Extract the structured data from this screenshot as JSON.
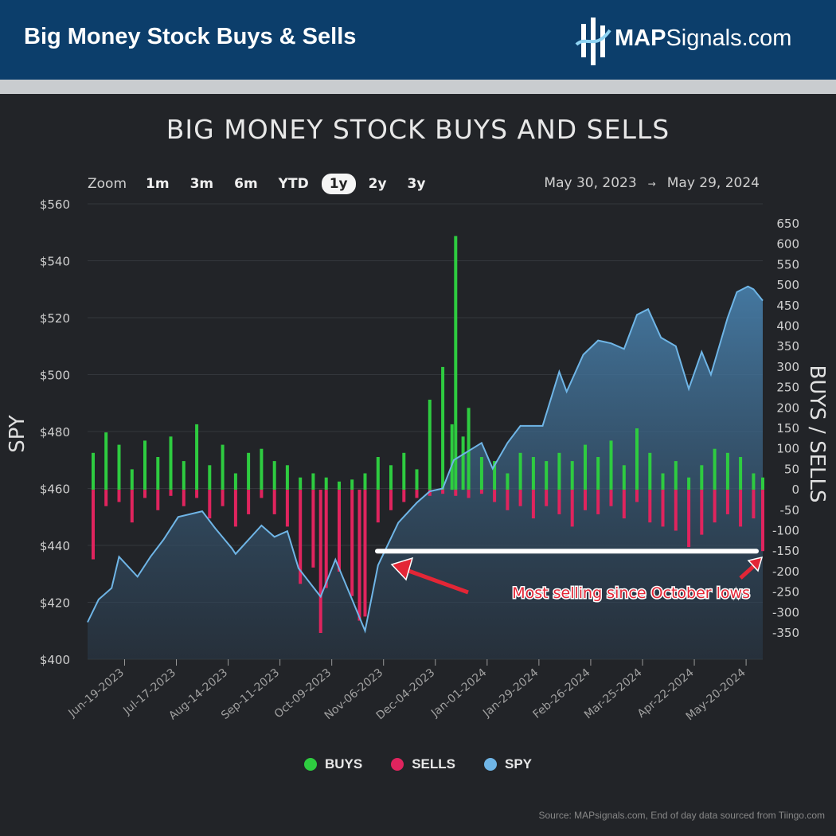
{
  "header": {
    "title": "Big Money Stock Buys & Sells",
    "logo_bold": "MAP",
    "logo_rest": "Signals.com"
  },
  "zoom": {
    "label": "Zoom",
    "options": [
      "1m",
      "3m",
      "6m",
      "YTD",
      "1y",
      "2y",
      "3y"
    ],
    "active": "1y"
  },
  "range": {
    "from": "May 30, 2023",
    "arrow": "→",
    "to": "May 29, 2024"
  },
  "legend": [
    {
      "label": "BUYS",
      "color": "#2ecc40"
    },
    {
      "label": "SELLS",
      "color": "#e0245e"
    },
    {
      "label": "SPY",
      "color": "#6fb5e6"
    }
  ],
  "source": "Source: MAPsignals.com, End of day data sourced from Tiingo.com",
  "annotation": {
    "text": "Most selling since October lows",
    "level": -150
  },
  "colors": {
    "buys": "#2ecc40",
    "sells": "#e0245e",
    "spy": "#6fb5e6",
    "annotation": "#e32636"
  },
  "chart_data": {
    "type": "bar",
    "title": "BIG MONEY STOCK BUYS AND SELLS",
    "ylabel_left": "SPY",
    "ylabel_right": "BUYS / SELLS",
    "left_axis": {
      "range": [
        400,
        560
      ],
      "ticks": [
        400,
        420,
        440,
        460,
        480,
        500,
        520,
        540,
        560
      ],
      "tick_labels": [
        "$400",
        "$420",
        "$440",
        "$460",
        "$480",
        "$500",
        "$520",
        "$540",
        "$560"
      ]
    },
    "right_axis": {
      "range": [
        -350,
        650
      ],
      "ticks": [
        -350,
        -300,
        -250,
        -200,
        -150,
        -100,
        -50,
        0,
        50,
        100,
        150,
        200,
        250,
        300,
        350,
        400,
        450,
        500,
        550,
        600,
        650
      ],
      "tick_labels": [
        "-350",
        "-300",
        "-250",
        "-200",
        "-150",
        "-100",
        "-50",
        "0",
        "50",
        "100",
        "150",
        "200",
        "250",
        "300",
        "350",
        "400",
        "450",
        "500",
        "550",
        "600",
        "650"
      ]
    },
    "x_ticks": [
      "Jun-19-2023",
      "Jul-17-2023",
      "Aug-14-2023",
      "Sep-11-2023",
      "Oct-09-2023",
      "Nov-06-2023",
      "Dec-04-2023",
      "Jan-01-2024",
      "Jan-29-2024",
      "Feb-26-2024",
      "Mar-25-2024",
      "Apr-22-2024",
      "May-20-2024"
    ],
    "x_range": [
      "2023-05-30",
      "2024-05-29"
    ],
    "series": [
      {
        "name": "BUYS",
        "type": "bar",
        "points": [
          {
            "x": "2023-06-02",
            "y": 90
          },
          {
            "x": "2023-06-09",
            "y": 140
          },
          {
            "x": "2023-06-16",
            "y": 110
          },
          {
            "x": "2023-06-23",
            "y": 50
          },
          {
            "x": "2023-06-30",
            "y": 120
          },
          {
            "x": "2023-07-07",
            "y": 80
          },
          {
            "x": "2023-07-14",
            "y": 130
          },
          {
            "x": "2023-07-21",
            "y": 70
          },
          {
            "x": "2023-07-28",
            "y": 160
          },
          {
            "x": "2023-08-04",
            "y": 60
          },
          {
            "x": "2023-08-11",
            "y": 110
          },
          {
            "x": "2023-08-18",
            "y": 40
          },
          {
            "x": "2023-08-25",
            "y": 90
          },
          {
            "x": "2023-09-01",
            "y": 100
          },
          {
            "x": "2023-09-08",
            "y": 70
          },
          {
            "x": "2023-09-15",
            "y": 60
          },
          {
            "x": "2023-09-22",
            "y": 30
          },
          {
            "x": "2023-09-29",
            "y": 40
          },
          {
            "x": "2023-10-06",
            "y": 30
          },
          {
            "x": "2023-10-13",
            "y": 20
          },
          {
            "x": "2023-10-20",
            "y": 25
          },
          {
            "x": "2023-10-27",
            "y": 40
          },
          {
            "x": "2023-11-03",
            "y": 80
          },
          {
            "x": "2023-11-10",
            "y": 60
          },
          {
            "x": "2023-11-17",
            "y": 90
          },
          {
            "x": "2023-11-24",
            "y": 50
          },
          {
            "x": "2023-12-01",
            "y": 220
          },
          {
            "x": "2023-12-08",
            "y": 300
          },
          {
            "x": "2023-12-13",
            "y": 160
          },
          {
            "x": "2023-12-15",
            "y": 620
          },
          {
            "x": "2023-12-19",
            "y": 130
          },
          {
            "x": "2023-12-22",
            "y": 200
          },
          {
            "x": "2023-12-29",
            "y": 80
          },
          {
            "x": "2024-01-05",
            "y": 70
          },
          {
            "x": "2024-01-12",
            "y": 40
          },
          {
            "x": "2024-01-19",
            "y": 90
          },
          {
            "x": "2024-01-26",
            "y": 80
          },
          {
            "x": "2024-02-02",
            "y": 70
          },
          {
            "x": "2024-02-09",
            "y": 90
          },
          {
            "x": "2024-02-16",
            "y": 70
          },
          {
            "x": "2024-02-23",
            "y": 110
          },
          {
            "x": "2024-03-01",
            "y": 80
          },
          {
            "x": "2024-03-08",
            "y": 120
          },
          {
            "x": "2024-03-15",
            "y": 60
          },
          {
            "x": "2024-03-22",
            "y": 150
          },
          {
            "x": "2024-03-29",
            "y": 90
          },
          {
            "x": "2024-04-05",
            "y": 40
          },
          {
            "x": "2024-04-12",
            "y": 70
          },
          {
            "x": "2024-04-19",
            "y": 30
          },
          {
            "x": "2024-04-26",
            "y": 60
          },
          {
            "x": "2024-05-03",
            "y": 100
          },
          {
            "x": "2024-05-10",
            "y": 90
          },
          {
            "x": "2024-05-17",
            "y": 80
          },
          {
            "x": "2024-05-24",
            "y": 40
          },
          {
            "x": "2024-05-29",
            "y": 30
          }
        ]
      },
      {
        "name": "SELLS",
        "type": "bar",
        "points": [
          {
            "x": "2023-06-02",
            "y": -170
          },
          {
            "x": "2023-06-09",
            "y": -40
          },
          {
            "x": "2023-06-16",
            "y": -30
          },
          {
            "x": "2023-06-23",
            "y": -80
          },
          {
            "x": "2023-06-30",
            "y": -20
          },
          {
            "x": "2023-07-07",
            "y": -50
          },
          {
            "x": "2023-07-14",
            "y": -15
          },
          {
            "x": "2023-07-21",
            "y": -40
          },
          {
            "x": "2023-07-28",
            "y": -20
          },
          {
            "x": "2023-08-04",
            "y": -70
          },
          {
            "x": "2023-08-11",
            "y": -40
          },
          {
            "x": "2023-08-18",
            "y": -90
          },
          {
            "x": "2023-08-25",
            "y": -60
          },
          {
            "x": "2023-09-01",
            "y": -20
          },
          {
            "x": "2023-09-08",
            "y": -60
          },
          {
            "x": "2023-09-15",
            "y": -90
          },
          {
            "x": "2023-09-22",
            "y": -230
          },
          {
            "x": "2023-09-29",
            "y": -190
          },
          {
            "x": "2023-10-03",
            "y": -350
          },
          {
            "x": "2023-10-06",
            "y": -240
          },
          {
            "x": "2023-10-13",
            "y": -200
          },
          {
            "x": "2023-10-20",
            "y": -260
          },
          {
            "x": "2023-10-24",
            "y": -320
          },
          {
            "x": "2023-10-27",
            "y": -310
          },
          {
            "x": "2023-11-03",
            "y": -80
          },
          {
            "x": "2023-11-10",
            "y": -50
          },
          {
            "x": "2023-11-17",
            "y": -30
          },
          {
            "x": "2023-11-24",
            "y": -20
          },
          {
            "x": "2023-12-01",
            "y": -15
          },
          {
            "x": "2023-12-08",
            "y": -10
          },
          {
            "x": "2023-12-15",
            "y": -15
          },
          {
            "x": "2023-12-22",
            "y": -20
          },
          {
            "x": "2023-12-29",
            "y": -10
          },
          {
            "x": "2024-01-05",
            "y": -30
          },
          {
            "x": "2024-01-12",
            "y": -50
          },
          {
            "x": "2024-01-19",
            "y": -40
          },
          {
            "x": "2024-01-26",
            "y": -70
          },
          {
            "x": "2024-02-02",
            "y": -40
          },
          {
            "x": "2024-02-09",
            "y": -60
          },
          {
            "x": "2024-02-16",
            "y": -90
          },
          {
            "x": "2024-02-23",
            "y": -50
          },
          {
            "x": "2024-03-01",
            "y": -60
          },
          {
            "x": "2024-03-08",
            "y": -40
          },
          {
            "x": "2024-03-15",
            "y": -70
          },
          {
            "x": "2024-03-22",
            "y": -30
          },
          {
            "x": "2024-03-29",
            "y": -80
          },
          {
            "x": "2024-04-05",
            "y": -90
          },
          {
            "x": "2024-04-12",
            "y": -100
          },
          {
            "x": "2024-04-19",
            "y": -140
          },
          {
            "x": "2024-04-26",
            "y": -110
          },
          {
            "x": "2024-05-03",
            "y": -80
          },
          {
            "x": "2024-05-10",
            "y": -60
          },
          {
            "x": "2024-05-17",
            "y": -90
          },
          {
            "x": "2024-05-24",
            "y": -70
          },
          {
            "x": "2024-05-29",
            "y": -150
          }
        ]
      },
      {
        "name": "SPY",
        "type": "area",
        "points": [
          {
            "x": "2023-05-30",
            "y": 413
          },
          {
            "x": "2023-06-05",
            "y": 421
          },
          {
            "x": "2023-06-12",
            "y": 425
          },
          {
            "x": "2023-06-16",
            "y": 436
          },
          {
            "x": "2023-06-26",
            "y": 429
          },
          {
            "x": "2023-07-03",
            "y": 436
          },
          {
            "x": "2023-07-10",
            "y": 442
          },
          {
            "x": "2023-07-18",
            "y": 450
          },
          {
            "x": "2023-07-31",
            "y": 452
          },
          {
            "x": "2023-08-07",
            "y": 446
          },
          {
            "x": "2023-08-16",
            "y": 439
          },
          {
            "x": "2023-08-18",
            "y": 437
          },
          {
            "x": "2023-09-01",
            "y": 447
          },
          {
            "x": "2023-09-08",
            "y": 443
          },
          {
            "x": "2023-09-15",
            "y": 445
          },
          {
            "x": "2023-09-21",
            "y": 432
          },
          {
            "x": "2023-10-03",
            "y": 422
          },
          {
            "x": "2023-10-11",
            "y": 435
          },
          {
            "x": "2023-10-20",
            "y": 421
          },
          {
            "x": "2023-10-27",
            "y": 410
          },
          {
            "x": "2023-11-03",
            "y": 433
          },
          {
            "x": "2023-11-14",
            "y": 448
          },
          {
            "x": "2023-11-24",
            "y": 455
          },
          {
            "x": "2023-12-01",
            "y": 459
          },
          {
            "x": "2023-12-08",
            "y": 460
          },
          {
            "x": "2023-12-14",
            "y": 470
          },
          {
            "x": "2023-12-29",
            "y": 476
          },
          {
            "x": "2024-01-04",
            "y": 467
          },
          {
            "x": "2024-01-12",
            "y": 476
          },
          {
            "x": "2024-01-19",
            "y": 482
          },
          {
            "x": "2024-01-31",
            "y": 482
          },
          {
            "x": "2024-02-09",
            "y": 501
          },
          {
            "x": "2024-02-13",
            "y": 494
          },
          {
            "x": "2024-02-22",
            "y": 507
          },
          {
            "x": "2024-03-01",
            "y": 512
          },
          {
            "x": "2024-03-08",
            "y": 511
          },
          {
            "x": "2024-03-15",
            "y": 509
          },
          {
            "x": "2024-03-22",
            "y": 521
          },
          {
            "x": "2024-03-28",
            "y": 523
          },
          {
            "x": "2024-04-04",
            "y": 513
          },
          {
            "x": "2024-04-12",
            "y": 510
          },
          {
            "x": "2024-04-19",
            "y": 495
          },
          {
            "x": "2024-04-26",
            "y": 508
          },
          {
            "x": "2024-05-01",
            "y": 500
          },
          {
            "x": "2024-05-10",
            "y": 520
          },
          {
            "x": "2024-05-15",
            "y": 529
          },
          {
            "x": "2024-05-21",
            "y": 531
          },
          {
            "x": "2024-05-24",
            "y": 530
          },
          {
            "x": "2024-05-29",
            "y": 526
          }
        ]
      }
    ]
  }
}
